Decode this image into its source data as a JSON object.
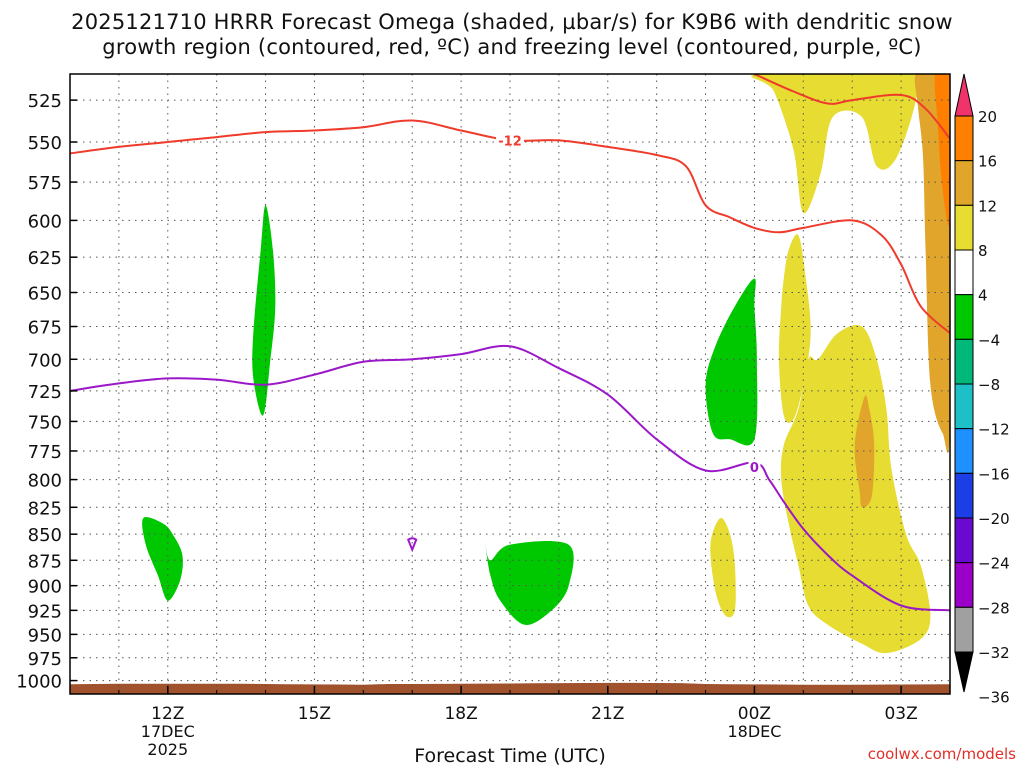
{
  "title": {
    "line1": "2025121710 HRRR Forecast Omega (shaded, µbar/s) for K9B6 with dendritic snow",
    "line2": "growth region (contoured, red, ºC) and freezing level (contoured, purple, ºC)"
  },
  "credit": "coolwx.com/models",
  "chart_data": {
    "type": "heatmap",
    "xlabel": "Forecast Time (UTC)",
    "ylabel": "",
    "x_unit": "hours since 2025-12-17 10Z",
    "xlim": [
      0,
      18
    ],
    "ylim": [
      1015,
      510
    ],
    "pressure_ticks": [
      525,
      550,
      575,
      600,
      625,
      650,
      675,
      700,
      725,
      750,
      775,
      800,
      825,
      850,
      875,
      900,
      925,
      950,
      975,
      1000
    ],
    "time_ticks": [
      {
        "x": 2,
        "label": "12Z",
        "sub": [
          "17DEC",
          "2025"
        ]
      },
      {
        "x": 5,
        "label": "15Z",
        "sub": []
      },
      {
        "x": 8,
        "label": "18Z",
        "sub": []
      },
      {
        "x": 11,
        "label": "21Z",
        "sub": []
      },
      {
        "x": 14,
        "label": "00Z",
        "sub": [
          "18DEC"
        ]
      },
      {
        "x": 17,
        "label": "03Z",
        "sub": []
      }
    ],
    "colorbar": {
      "labels": [
        "20",
        "16",
        "12",
        "8",
        "4",
        "−4",
        "−8",
        "−12",
        "−16",
        "−20",
        "−24",
        "−28",
        "−32",
        "−36"
      ],
      "colors": [
        "#f0336a",
        "#ff7f00",
        "#e0a52a",
        "#e6dc32",
        "#ffffff",
        "#00c800",
        "#00b87a",
        "#1ec0c8",
        "#1e90ff",
        "#1c3ee6",
        "#6a0ad0",
        "#9b00c8",
        "#a0a0a0",
        "#000000"
      ]
    },
    "omega_regions": [
      {
        "color": "#e6dc32",
        "points": [
          [
            14.1,
            510
          ],
          [
            14.4,
            520
          ],
          [
            14.8,
            555
          ],
          [
            15.0,
            595
          ],
          [
            15.35,
            570
          ],
          [
            15.6,
            535
          ],
          [
            16.2,
            535
          ],
          [
            16.5,
            565
          ],
          [
            16.9,
            560
          ],
          [
            17.3,
            525
          ],
          [
            17.2,
            510
          ]
        ]
      },
      {
        "color": "#e6dc32",
        "points": [
          [
            17.7,
            510
          ],
          [
            17.45,
            540
          ],
          [
            17.55,
            600
          ],
          [
            17.8,
            650
          ],
          [
            17.95,
            690
          ],
          [
            18,
            700
          ],
          [
            18,
            510
          ]
        ]
      },
      {
        "color": "#e6dc32",
        "points": [
          [
            14.6,
            640
          ],
          [
            14.55,
            660
          ],
          [
            14.5,
            700
          ],
          [
            14.6,
            745
          ],
          [
            14.8,
            748
          ],
          [
            15.0,
            720
          ],
          [
            15.15,
            680
          ],
          [
            15.05,
            640
          ],
          [
            14.9,
            610
          ],
          [
            14.7,
            620
          ]
        ]
      },
      {
        "color": "#e6dc32",
        "points": [
          [
            15.1,
            700
          ],
          [
            14.9,
            740
          ],
          [
            14.6,
            770
          ],
          [
            14.55,
            800
          ],
          [
            14.7,
            840
          ],
          [
            14.9,
            880
          ],
          [
            15.1,
            920
          ],
          [
            15.5,
            940
          ],
          [
            16.2,
            960
          ],
          [
            16.7,
            970
          ],
          [
            17.4,
            955
          ],
          [
            17.6,
            930
          ],
          [
            17.4,
            880
          ],
          [
            17.1,
            850
          ],
          [
            16.8,
            790
          ],
          [
            16.7,
            740
          ],
          [
            16.5,
            700
          ],
          [
            16.2,
            675
          ],
          [
            15.7,
            680
          ],
          [
            15.3,
            700
          ]
        ]
      },
      {
        "color": "#e0a52a",
        "points": [
          [
            17.3,
            510
          ],
          [
            17.7,
            510
          ],
          [
            18,
            510
          ],
          [
            18,
            750
          ],
          [
            17.85,
            760
          ],
          [
            17.6,
            720
          ],
          [
            17.5,
            620
          ],
          [
            17.45,
            560
          ],
          [
            17.35,
            530
          ]
        ]
      },
      {
        "color": "#e0a52a",
        "points": [
          [
            16.25,
            730
          ],
          [
            16.05,
            770
          ],
          [
            16.15,
            810
          ],
          [
            16.2,
            825
          ],
          [
            16.4,
            815
          ],
          [
            16.45,
            770
          ],
          [
            16.35,
            740
          ]
        ]
      },
      {
        "color": "#ff7f00",
        "points": [
          [
            17.7,
            510
          ],
          [
            18,
            510
          ],
          [
            18,
            600
          ],
          [
            17.85,
            580
          ],
          [
            17.75,
            540
          ]
        ]
      },
      {
        "color": "#e6dc32",
        "points": [
          [
            13.3,
            835
          ],
          [
            13.1,
            860
          ],
          [
            13.2,
            905
          ],
          [
            13.4,
            930
          ],
          [
            13.6,
            925
          ],
          [
            13.6,
            880
          ],
          [
            13.5,
            850
          ]
        ]
      },
      {
        "color": "#e6dc32",
        "points": [
          [
            16.6,
            920
          ],
          [
            16.8,
            940
          ],
          [
            17.0,
            960
          ],
          [
            17.3,
            950
          ],
          [
            17.3,
            935
          ],
          [
            17.1,
            920
          ],
          [
            16.9,
            915
          ]
        ]
      },
      {
        "color": "#00c800",
        "points": [
          [
            4.0,
            590
          ],
          [
            3.9,
            620
          ],
          [
            3.75,
            680
          ],
          [
            3.75,
            715
          ],
          [
            3.95,
            745
          ],
          [
            4.1,
            700
          ],
          [
            4.2,
            660
          ],
          [
            4.15,
            620
          ]
        ]
      },
      {
        "color": "#00c800",
        "points": [
          [
            14.0,
            640
          ],
          [
            13.6,
            660
          ],
          [
            13.2,
            690
          ],
          [
            13.0,
            720
          ],
          [
            13.15,
            760
          ],
          [
            13.5,
            765
          ],
          [
            14.0,
            765
          ],
          [
            14.05,
            700
          ],
          [
            14.0,
            660
          ]
        ]
      },
      {
        "color": "#00c800",
        "points": [
          [
            1.5,
            835
          ],
          [
            1.55,
            860
          ],
          [
            1.8,
            890
          ],
          [
            2.0,
            915
          ],
          [
            2.25,
            895
          ],
          [
            2.3,
            870
          ],
          [
            2.1,
            850
          ],
          [
            1.9,
            840
          ]
        ]
      },
      {
        "color": "#00c800",
        "points": [
          [
            8.5,
            860
          ],
          [
            8.6,
            890
          ],
          [
            8.8,
            915
          ],
          [
            9.3,
            940
          ],
          [
            9.85,
            925
          ],
          [
            10.2,
            900
          ],
          [
            10.2,
            860
          ],
          [
            9.0,
            860
          ],
          [
            8.6,
            875
          ]
        ]
      }
    ],
    "dgz_contour": {
      "label": "-12",
      "label_at": [
        9.0,
        549
      ],
      "color": "#ef3b2c",
      "points": [
        [
          0,
          557
        ],
        [
          1,
          553
        ],
        [
          2,
          550
        ],
        [
          3,
          547
        ],
        [
          4,
          544
        ],
        [
          5,
          543
        ],
        [
          6,
          541
        ],
        [
          7,
          537
        ],
        [
          8,
          543
        ],
        [
          9,
          549
        ],
        [
          10,
          549
        ],
        [
          11,
          553
        ],
        [
          12,
          558
        ],
        [
          12.6,
          565
        ],
        [
          13.0,
          590
        ],
        [
          13.5,
          598
        ],
        [
          14,
          605
        ],
        [
          14.5,
          608
        ],
        [
          15.0,
          605
        ],
        [
          16,
          600
        ],
        [
          16.6,
          610
        ],
        [
          17.0,
          630
        ],
        [
          17.4,
          660
        ],
        [
          18,
          680
        ]
      ],
      "upper_points": [
        [
          14,
          510
        ],
        [
          14.8,
          520
        ],
        [
          15.5,
          527
        ],
        [
          16,
          525
        ],
        [
          17,
          522
        ],
        [
          17.5,
          530
        ],
        [
          18,
          548
        ]
      ]
    },
    "freezing_level": {
      "label": "0",
      "label_at": [
        14.0,
        790
      ],
      "color": "#9b18c8",
      "points": [
        [
          0,
          725
        ],
        [
          1,
          719
        ],
        [
          2,
          715
        ],
        [
          3,
          716
        ],
        [
          4,
          720
        ],
        [
          5,
          712
        ],
        [
          6,
          702
        ],
        [
          7,
          700
        ],
        [
          8,
          696
        ],
        [
          9,
          690
        ],
        [
          10,
          707
        ],
        [
          11,
          728
        ],
        [
          12,
          765
        ],
        [
          13,
          792
        ],
        [
          14,
          785
        ],
        [
          14.3,
          800
        ],
        [
          14.6,
          820
        ],
        [
          15.0,
          845
        ],
        [
          15.5,
          870
        ],
        [
          16,
          890
        ],
        [
          17,
          920
        ],
        [
          18,
          925
        ]
      ],
      "bubble_at": [
        7.0,
        860
      ]
    },
    "terrain": {
      "color": "#a0522d",
      "top_pressure": 1005
    }
  }
}
